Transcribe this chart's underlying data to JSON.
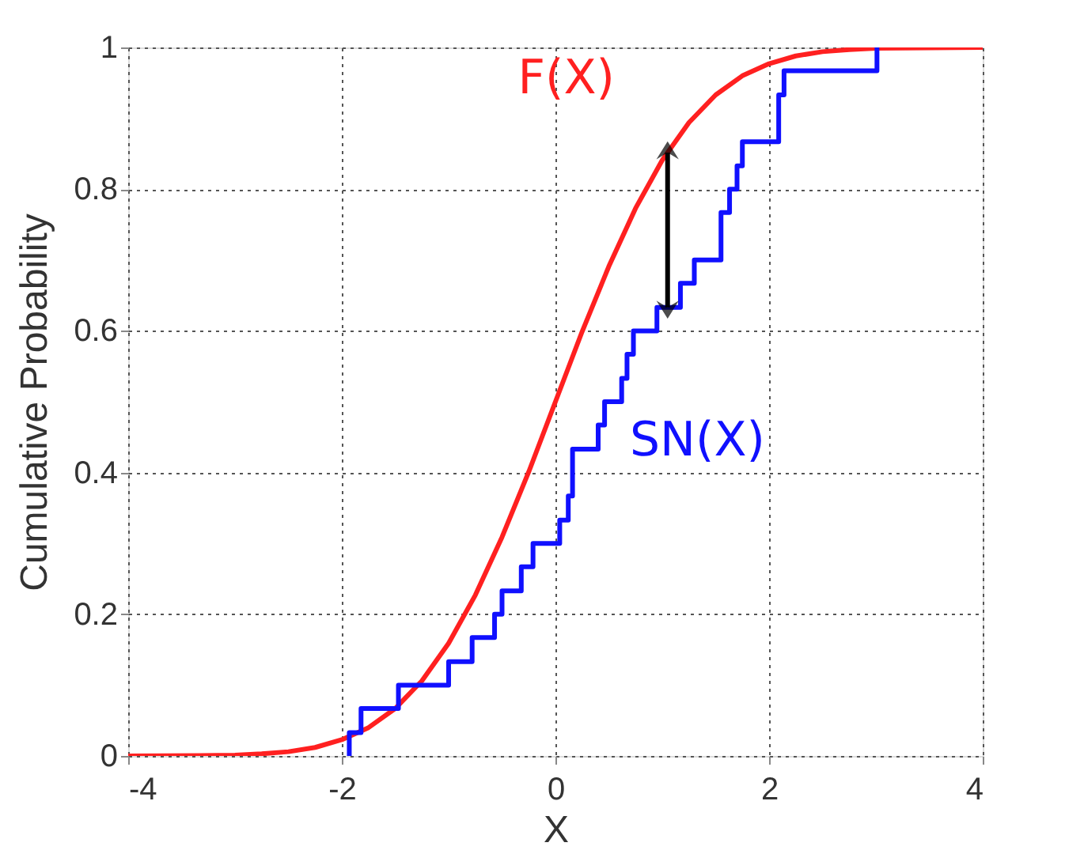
{
  "chart_data": {
    "type": "line",
    "xlabel": "X",
    "ylabel": "Cumulative Probability",
    "xlim": [
      -4,
      4
    ],
    "ylim": [
      0,
      1
    ],
    "xticks": [
      -4,
      -2,
      0,
      2,
      4
    ],
    "yticks": [
      0,
      0.2,
      0.4,
      0.6,
      0.8,
      1
    ],
    "grid": true,
    "line_style": "solid",
    "marker": "none",
    "series": [
      {
        "name": "F(X)",
        "color": "#ff2020",
        "x": [
          -4,
          -3,
          -2.75,
          -2.5,
          -2.25,
          -2,
          -1.75,
          -1.5,
          -1.25,
          -1,
          -0.75,
          -0.5,
          -0.25,
          0,
          0.25,
          0.5,
          0.75,
          1,
          1.25,
          1.5,
          1.75,
          2,
          2.25,
          2.5,
          2.75,
          3,
          4
        ],
        "values": [
          0,
          0.001,
          0.003,
          0.006,
          0.012,
          0.023,
          0.04,
          0.067,
          0.106,
          0.159,
          0.227,
          0.309,
          0.401,
          0.5,
          0.599,
          0.691,
          0.773,
          0.841,
          0.894,
          0.933,
          0.96,
          0.977,
          0.988,
          0.994,
          0.997,
          0.999,
          1
        ]
      },
      {
        "name": "SN(X)",
        "type": "step",
        "color": "#1010ff",
        "x": [
          -1.93,
          -1.93,
          -1.82,
          -1.47,
          -1.0,
          -0.78,
          -0.57,
          -0.5,
          -0.32,
          -0.21,
          0.04,
          0.12,
          0.16,
          0.4,
          0.46,
          0.62,
          0.67,
          0.73,
          0.95,
          1.17,
          1.3,
          1.55,
          1.63,
          1.7,
          1.75,
          2.09,
          2.14,
          3.01
        ],
        "values": [
          0,
          0.033,
          0.067,
          0.1,
          0.133,
          0.167,
          0.2,
          0.233,
          0.267,
          0.3,
          0.333,
          0.367,
          0.433,
          0.467,
          0.5,
          0.533,
          0.567,
          0.6,
          0.633,
          0.667,
          0.7,
          0.767,
          0.8,
          0.833,
          0.867,
          0.933,
          0.967,
          1.0
        ]
      }
    ]
  }
}
